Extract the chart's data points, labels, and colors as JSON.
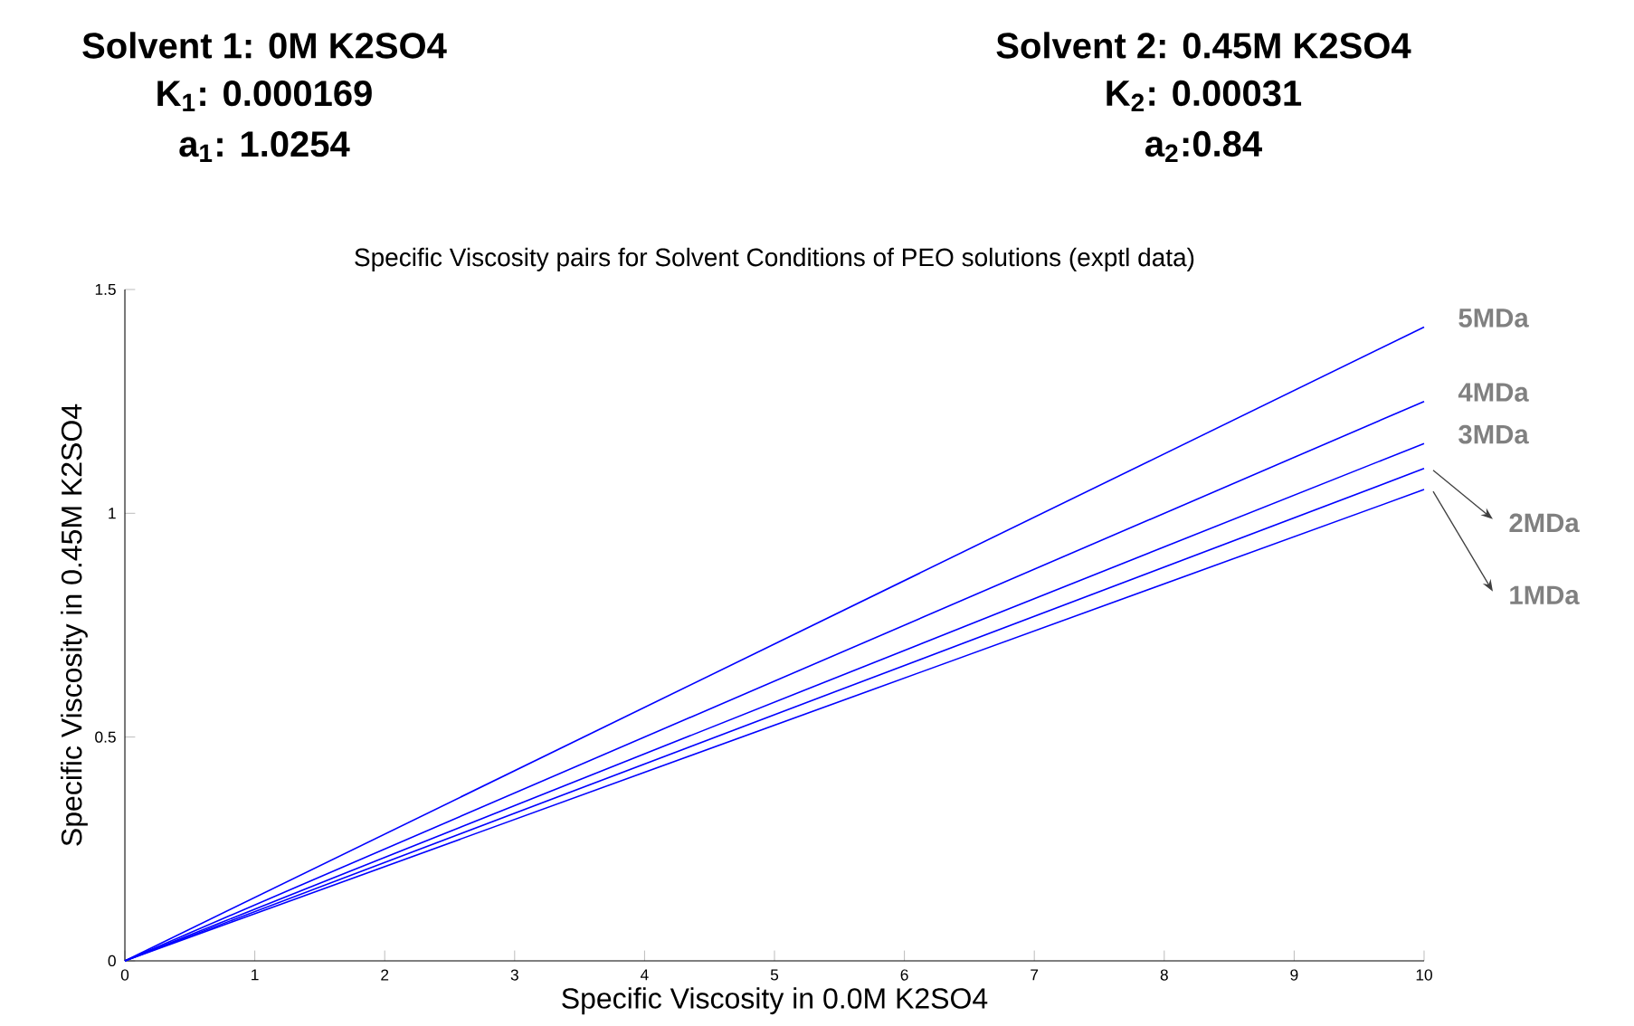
{
  "chart_data": {
    "type": "line",
    "title": "Specific Viscosity pairs for Solvent Conditions of PEO solutions (exptl data)",
    "xlabel": "Specific Viscosity in 0.0M K2SO4",
    "ylabel": "Specific Viscosity in 0.45M K2SO4",
    "annotations": [
      "Solvent 1: 0M K2SO4",
      "K$_{1}$: 0.000169",
      "a$_{1}$: 1.0254",
      "Solvent 2: 0.45M K2SO4",
      "K$_{2}$: 0.00031",
      "a$_{2}$:0.84"
    ],
    "x": [
      0,
      10
    ],
    "series": [
      {
        "name": "5MDa",
        "color": "#0000ff",
        "values": [
          0,
          1.416
        ]
      },
      {
        "name": "4MDa",
        "color": "#0000ff",
        "values": [
          0,
          1.25
        ]
      },
      {
        "name": "3MDa",
        "color": "#0000ff",
        "values": [
          0,
          1.156
        ]
      },
      {
        "name": "2MDa",
        "color": "#0000ff",
        "values": [
          0,
          1.1
        ]
      },
      {
        "name": "1MDa",
        "color": "#0000ff",
        "values": [
          0,
          1.053
        ]
      }
    ],
    "xlim": [
      0,
      10
    ],
    "ylim": [
      0,
      1.5
    ],
    "xticks": [
      0,
      1,
      2,
      3,
      4,
      5,
      6,
      7,
      8,
      9,
      10
    ],
    "yticks": [
      0,
      0.5,
      1,
      1.5
    ],
    "grid": false,
    "legend": false,
    "marker": "none",
    "line_style": "solid"
  }
}
